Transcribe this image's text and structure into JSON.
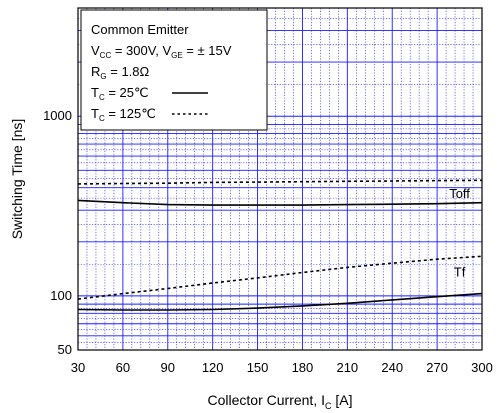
{
  "chart_data": {
    "type": "line",
    "title": "",
    "xlabel": "Collector Current, I",
    "xlabel_sub": "C",
    "xlabel_unit": "[A]",
    "ylabel": "Switching Time [ns]",
    "xlim": [
      30,
      300
    ],
    "ylim": [
      50,
      4000
    ],
    "yscale": "log",
    "grid": true,
    "grid_color": "#1a1aff",
    "x_ticks": [
      30,
      60,
      90,
      120,
      150,
      180,
      210,
      240,
      270,
      300
    ],
    "y_tick_labels": [
      {
        "value": 50,
        "label": "50"
      },
      {
        "value": 100,
        "label": "100"
      },
      {
        "value": 1000,
        "label": "1000"
      }
    ],
    "legend": {
      "position": "top-left",
      "lines": [
        {
          "parts": [
            "Common Emitter"
          ]
        },
        {
          "parts": [
            "V",
            "CC",
            " = 300V, V",
            "GE",
            " = ",
            "±",
            "  15V"
          ]
        },
        {
          "parts": [
            "R",
            "G",
            " = 1.8",
            "Ω"
          ]
        },
        {
          "parts": [
            "T",
            "C",
            " =   25",
            "℃"
          ],
          "style": "solid"
        },
        {
          "parts": [
            "T",
            "C",
            " = 125",
            "℃"
          ],
          "style": "dotted"
        }
      ]
    },
    "series": [
      {
        "name": "Toff",
        "temp": "25℃",
        "style": "solid",
        "x": [
          30,
          60,
          90,
          120,
          150,
          180,
          210,
          240,
          270,
          300
        ],
        "values": [
          340,
          330,
          322,
          320,
          320,
          320,
          322,
          324,
          326,
          330
        ]
      },
      {
        "name": "Toff",
        "temp": "125℃",
        "style": "dotted",
        "x": [
          30,
          60,
          90,
          120,
          150,
          180,
          210,
          240,
          270,
          300
        ],
        "values": [
          420,
          422,
          424,
          428,
          430,
          432,
          434,
          436,
          438,
          440
        ]
      },
      {
        "name": "Tf",
        "temp": "25℃",
        "style": "solid",
        "x": [
          30,
          60,
          90,
          120,
          150,
          180,
          210,
          240,
          270,
          300
        ],
        "values": [
          84,
          83.5,
          83.5,
          84,
          85.5,
          88,
          91,
          95,
          99,
          103
        ]
      },
      {
        "name": "Tf",
        "temp": "125℃",
        "style": "dotted",
        "x": [
          30,
          60,
          90,
          120,
          150,
          180,
          210,
          240,
          270,
          300
        ],
        "values": [
          96,
          103,
          110,
          118,
          126,
          135,
          144,
          152,
          160,
          166
        ]
      }
    ],
    "series_labels": [
      {
        "text": "Toff",
        "x": 285,
        "y": 370
      },
      {
        "text": "Tf",
        "x": 285,
        "y": 135
      }
    ]
  }
}
